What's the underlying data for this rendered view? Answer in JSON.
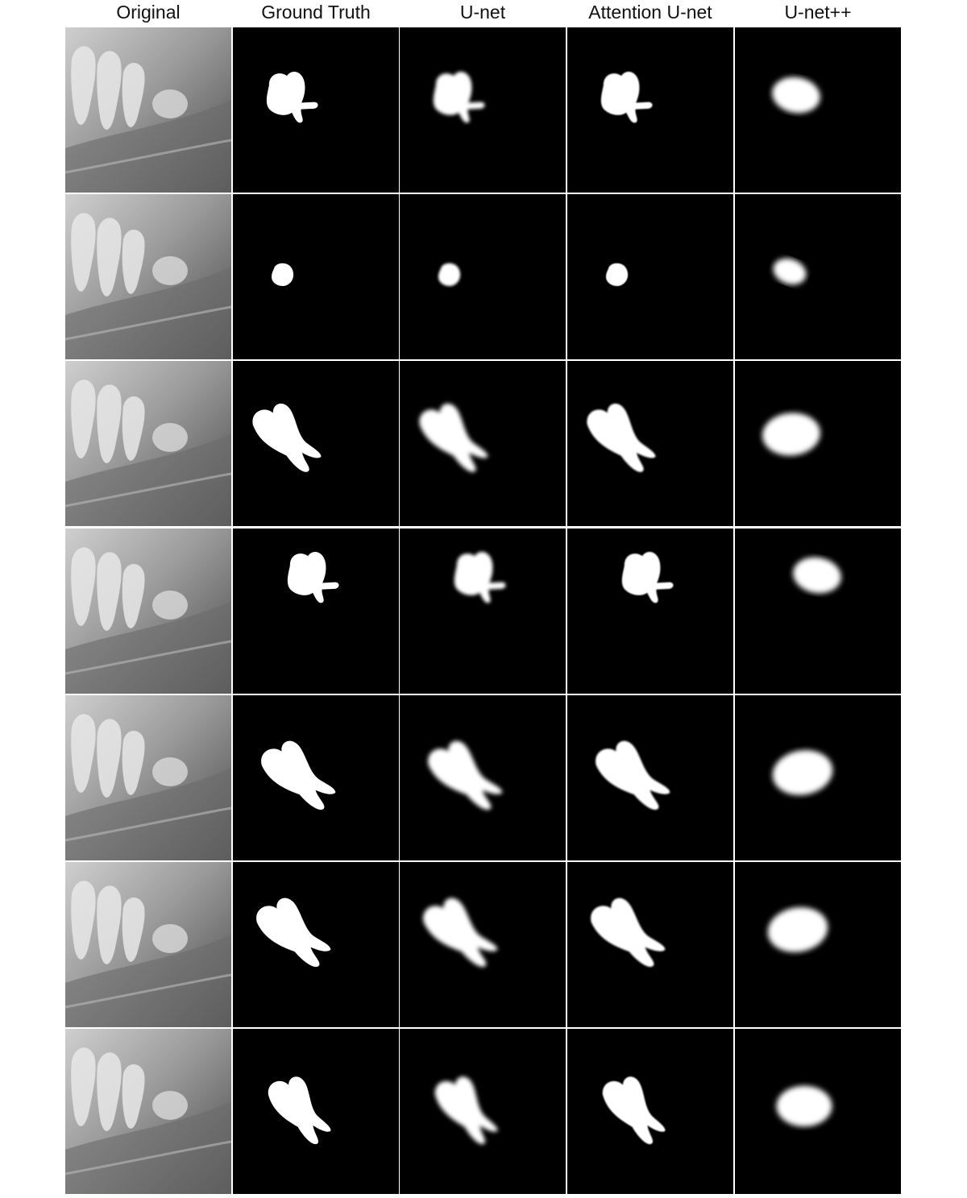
{
  "columns": [
    {
      "key": "original",
      "label": "Original"
    },
    {
      "key": "gt",
      "label": "Ground Truth"
    },
    {
      "key": "unet",
      "label": "U-net"
    },
    {
      "key": "attunet",
      "label": "Attention U-net"
    },
    {
      "key": "unetpp",
      "label": "U-net++"
    }
  ],
  "rows": [
    {
      "id": "r1",
      "shape": "tooth-upright-roots"
    },
    {
      "id": "r2",
      "shape": "tooth-bud-round"
    },
    {
      "id": "r3",
      "shape": "tooth-tilted-two-roots"
    },
    {
      "id": "r4",
      "shape": "tooth-upright-roots"
    },
    {
      "id": "r5",
      "shape": "tooth-tilted-two-roots"
    },
    {
      "id": "r6",
      "shape": "tooth-tilted-two-roots"
    },
    {
      "id": "r7",
      "shape": "tooth-tilted-two-roots"
    }
  ],
  "colors": {
    "background": "#ffffff",
    "panel": "#000000",
    "mask": "#ffffff",
    "divider": "#cfcfcf"
  }
}
